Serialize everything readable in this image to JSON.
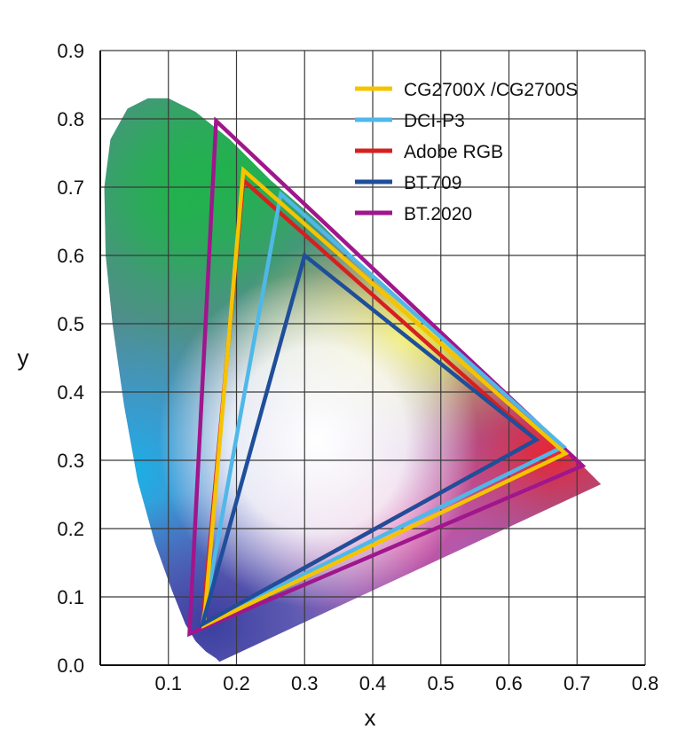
{
  "chart_data": {
    "type": "scatter",
    "subtype": "cie-1931-chromaticity-gamut",
    "title": "",
    "xlabel": "x",
    "ylabel": "y",
    "xlim": [
      0.0,
      0.8
    ],
    "ylim": [
      0.0,
      0.9
    ],
    "x_ticks": [
      "0.1",
      "0.2",
      "0.3",
      "0.4",
      "0.5",
      "0.6",
      "0.7",
      "0.8"
    ],
    "y_ticks": [
      "0.0",
      "0.1",
      "0.2",
      "0.3",
      "0.4",
      "0.5",
      "0.6",
      "0.7",
      "0.8",
      "0.9"
    ],
    "grid": true,
    "legend_position": "top-right",
    "spectral_locus": [
      [
        0.175,
        0.005
      ],
      [
        0.17,
        0.01
      ],
      [
        0.155,
        0.02
      ],
      [
        0.14,
        0.035
      ],
      [
        0.125,
        0.06
      ],
      [
        0.105,
        0.11
      ],
      [
        0.08,
        0.18
      ],
      [
        0.055,
        0.27
      ],
      [
        0.035,
        0.38
      ],
      [
        0.018,
        0.5
      ],
      [
        0.008,
        0.6
      ],
      [
        0.006,
        0.7
      ],
      [
        0.015,
        0.77
      ],
      [
        0.04,
        0.815
      ],
      [
        0.07,
        0.83
      ],
      [
        0.1,
        0.83
      ],
      [
        0.14,
        0.81
      ],
      [
        0.19,
        0.77
      ],
      [
        0.25,
        0.71
      ],
      [
        0.32,
        0.65
      ],
      [
        0.4,
        0.57
      ],
      [
        0.48,
        0.5
      ],
      [
        0.56,
        0.43
      ],
      [
        0.64,
        0.355
      ],
      [
        0.7,
        0.3
      ],
      [
        0.735,
        0.265
      ]
    ],
    "series": [
      {
        "name": "CG2700X /CG2700S",
        "color": "#f5c400",
        "values": [
          [
            0.683,
            0.31
          ],
          [
            0.21,
            0.725
          ],
          [
            0.152,
            0.058
          ]
        ]
      },
      {
        "name": "DCI-P3",
        "color": "#4fb8e8",
        "values": [
          [
            0.68,
            0.32
          ],
          [
            0.265,
            0.69
          ],
          [
            0.15,
            0.06
          ]
        ]
      },
      {
        "name": "Adobe RGB",
        "color": "#d62020",
        "values": [
          [
            0.64,
            0.33
          ],
          [
            0.21,
            0.71
          ],
          [
            0.15,
            0.06
          ]
        ]
      },
      {
        "name": "BT.709",
        "color": "#1f4e9a",
        "values": [
          [
            0.64,
            0.33
          ],
          [
            0.3,
            0.6
          ],
          [
            0.15,
            0.06
          ]
        ]
      },
      {
        "name": "BT.2020",
        "color": "#a0168c",
        "values": [
          [
            0.708,
            0.292
          ],
          [
            0.17,
            0.797
          ],
          [
            0.131,
            0.046
          ]
        ]
      }
    ]
  }
}
